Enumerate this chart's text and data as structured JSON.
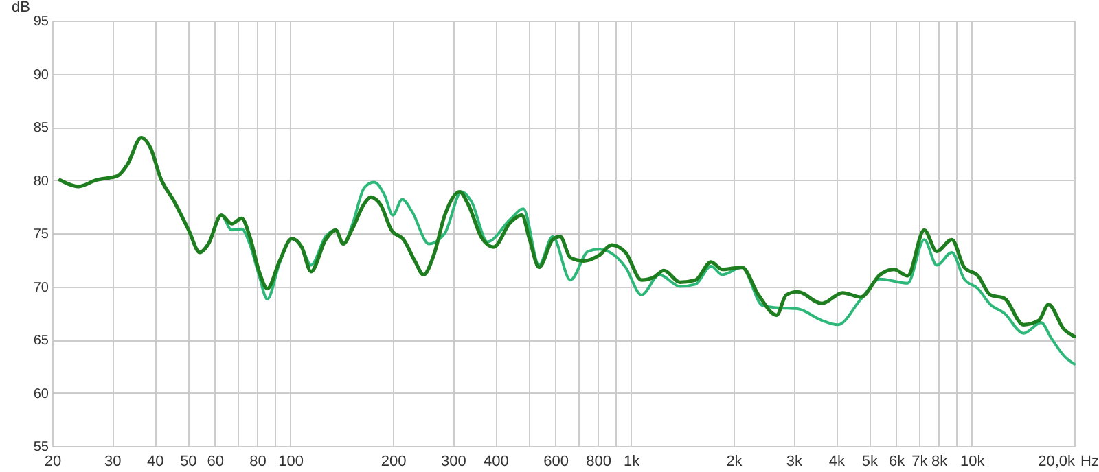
{
  "chart_data": {
    "type": "line",
    "xlabel": "Hz",
    "ylabel": "dB",
    "log": "x",
    "grid": true,
    "line_style": "solid",
    "marker": "none",
    "xlim": [
      20,
      20000
    ],
    "ylim": [
      55,
      95
    ],
    "xticks": [
      {
        "value": 20,
        "label": "20"
      },
      {
        "value": 30,
        "label": "30"
      },
      {
        "value": 40,
        "label": "40"
      },
      {
        "value": 50,
        "label": "50"
      },
      {
        "value": 60,
        "label": "60"
      },
      {
        "value": 70,
        "label": null
      },
      {
        "value": 80,
        "label": "80"
      },
      {
        "value": 90,
        "label": null
      },
      {
        "value": 100,
        "label": "100"
      },
      {
        "value": 200,
        "label": "200"
      },
      {
        "value": 300,
        "label": "300"
      },
      {
        "value": 400,
        "label": "400"
      },
      {
        "value": 500,
        "label": null
      },
      {
        "value": 600,
        "label": "600"
      },
      {
        "value": 700,
        "label": null
      },
      {
        "value": 800,
        "label": "800"
      },
      {
        "value": 900,
        "label": null
      },
      {
        "value": 1000,
        "label": "1k"
      },
      {
        "value": 2000,
        "label": "2k"
      },
      {
        "value": 3000,
        "label": "3k"
      },
      {
        "value": 4000,
        "label": "4k"
      },
      {
        "value": 5000,
        "label": "5k"
      },
      {
        "value": 6000,
        "label": "6k"
      },
      {
        "value": 7000,
        "label": "7k"
      },
      {
        "value": 8000,
        "label": "8k"
      },
      {
        "value": 9000,
        "label": null
      },
      {
        "value": 10000,
        "label": "10k"
      },
      {
        "value": 20000,
        "label": "20,0k"
      }
    ],
    "yticks": [
      55,
      60,
      65,
      70,
      75,
      80,
      85,
      90,
      95
    ],
    "series": [
      {
        "color": "#2db87a",
        "x": [
          21.1,
          23.9,
          26.9,
          31.1,
          33.3,
          36.5,
          38.9,
          41.6,
          45.6,
          50.3,
          54.2,
          57.5,
          62.7,
          67.3,
          72,
          76,
          81,
          85.6,
          93,
          101,
          108,
          115,
          127,
          136,
          143,
          152,
          165,
          176,
          189,
          200,
          213,
          228,
          255,
          284,
          318,
          340,
          379,
          442,
          483,
          537,
          589,
          664,
          748,
          804,
          878,
          964,
          1073,
          1211,
          1393,
          1546,
          1717,
          1853,
          2115,
          2431,
          2676,
          3079,
          3634,
          4048,
          4728,
          5383,
          6484,
          7254,
          7895,
          8741,
          9507,
          10433,
          11340,
          12445,
          14195,
          16000,
          17072,
          18750,
          20000
        ],
        "values": [
          80.0,
          79.4,
          80.0,
          80.4,
          81.5,
          84.0,
          83.0,
          80.2,
          78.0,
          75.3,
          73.2,
          74.0,
          76.7,
          75.3,
          75.4,
          74.0,
          71.0,
          68.8,
          72.2,
          74.5,
          73.7,
          72.0,
          74.7,
          75.3,
          74.0,
          75.8,
          79.3,
          79.8,
          78.6,
          76.7,
          78.2,
          77.0,
          74.0,
          75.0,
          78.9,
          78.0,
          74.2,
          76.3,
          77.3,
          72.0,
          74.7,
          70.6,
          73.3,
          73.5,
          73.1,
          71.8,
          69.2,
          71.1,
          70.0,
          70.2,
          71.9,
          71.1,
          71.8,
          68.2,
          68.0,
          67.9,
          66.8,
          66.4,
          68.8,
          70.7,
          70.3,
          74.4,
          72.0,
          73.2,
          70.7,
          69.8,
          68.3,
          67.5,
          65.6,
          66.6,
          65.2,
          63.4,
          62.7
        ]
      },
      {
        "color": "#1e7d1e",
        "x": [
          21.1,
          23.9,
          26.9,
          31.1,
          33.3,
          36.5,
          38.9,
          41.6,
          45.6,
          50.3,
          54.2,
          57.5,
          62.7,
          67.3,
          72,
          76,
          81,
          85.6,
          93,
          101,
          108,
          115,
          127,
          136,
          143,
          152,
          165,
          172,
          184,
          198,
          215,
          232,
          246,
          264,
          284,
          314,
          334,
          364,
          395,
          442,
          478,
          504,
          537,
          589,
          619,
          664,
          727,
          804,
          878,
          964,
          1073,
          1171,
          1248,
          1393,
          1546,
          1717,
          1853,
          2115,
          2367,
          2676,
          2854,
          3079,
          3634,
          4179,
          4728,
          5383,
          5908,
          6484,
          7254,
          7895,
          8741,
          9507,
          10433,
          11340,
          12445,
          14195,
          15738,
          16810,
          18630,
          20000
        ],
        "values": [
          80.0,
          79.4,
          80.0,
          80.4,
          81.5,
          84.0,
          83.0,
          80.2,
          78.0,
          75.3,
          73.2,
          74.0,
          76.7,
          75.9,
          76.4,
          74.7,
          71.4,
          69.8,
          72.4,
          74.5,
          73.7,
          71.4,
          74.4,
          75.3,
          74.0,
          75.4,
          77.8,
          78.4,
          77.7,
          75.3,
          74.4,
          72.4,
          71.1,
          73.0,
          76.7,
          78.9,
          77.6,
          74.6,
          73.7,
          76.0,
          76.7,
          74.4,
          71.8,
          74.4,
          74.7,
          72.7,
          72.4,
          72.9,
          73.9,
          73.2,
          70.6,
          70.9,
          71.5,
          70.4,
          70.6,
          72.3,
          71.6,
          71.8,
          69.2,
          67.3,
          69.2,
          69.5,
          68.4,
          69.4,
          69.0,
          71.1,
          71.6,
          71.0,
          75.3,
          73.3,
          74.4,
          71.8,
          71.0,
          69.2,
          68.9,
          66.4,
          66.8,
          68.3,
          66.0,
          65.3
        ]
      }
    ]
  }
}
